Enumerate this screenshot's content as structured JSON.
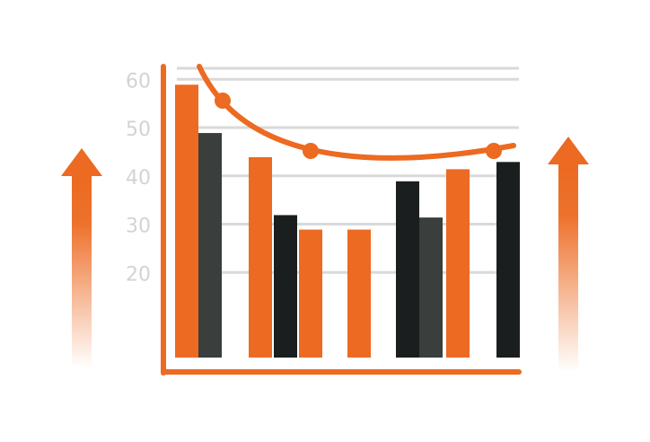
{
  "chart_data": {
    "type": "bar",
    "title": "",
    "xlabel": "",
    "ylabel": "",
    "ylim": [
      2,
      66
    ],
    "yticks": [
      20,
      30,
      40,
      50,
      60
    ],
    "grid": true,
    "legend": "none",
    "bars": [
      {
        "value": 58.5,
        "color": "orange"
      },
      {
        "value": 48.5,
        "color": "gray"
      },
      {
        "value": 43.5,
        "color": "orange"
      },
      {
        "value": 31.5,
        "color": "black"
      },
      {
        "value": 28.5,
        "color": "orange"
      },
      {
        "value": 28.5,
        "color": "orange"
      },
      {
        "value": 38.5,
        "color": "black"
      },
      {
        "value": 31.0,
        "color": "gray"
      },
      {
        "value": 41.0,
        "color": "orange"
      },
      {
        "value": 42.5,
        "color": "black"
      }
    ],
    "trend_line": {
      "markers": [
        {
          "bar_index": 1,
          "value": 59
        },
        {
          "bar_index": 5,
          "value": 50
        },
        {
          "bar_index": 9,
          "value": 50
        }
      ]
    },
    "decorations": [
      "arrow-up-icon",
      "arrow-up-icon"
    ],
    "colors": {
      "orange": "#ec6a21",
      "gray": "#3a3e3c",
      "black": "#1a1e1e",
      "grid": "#d9d9d9",
      "tick": "#d3d3d3"
    }
  }
}
